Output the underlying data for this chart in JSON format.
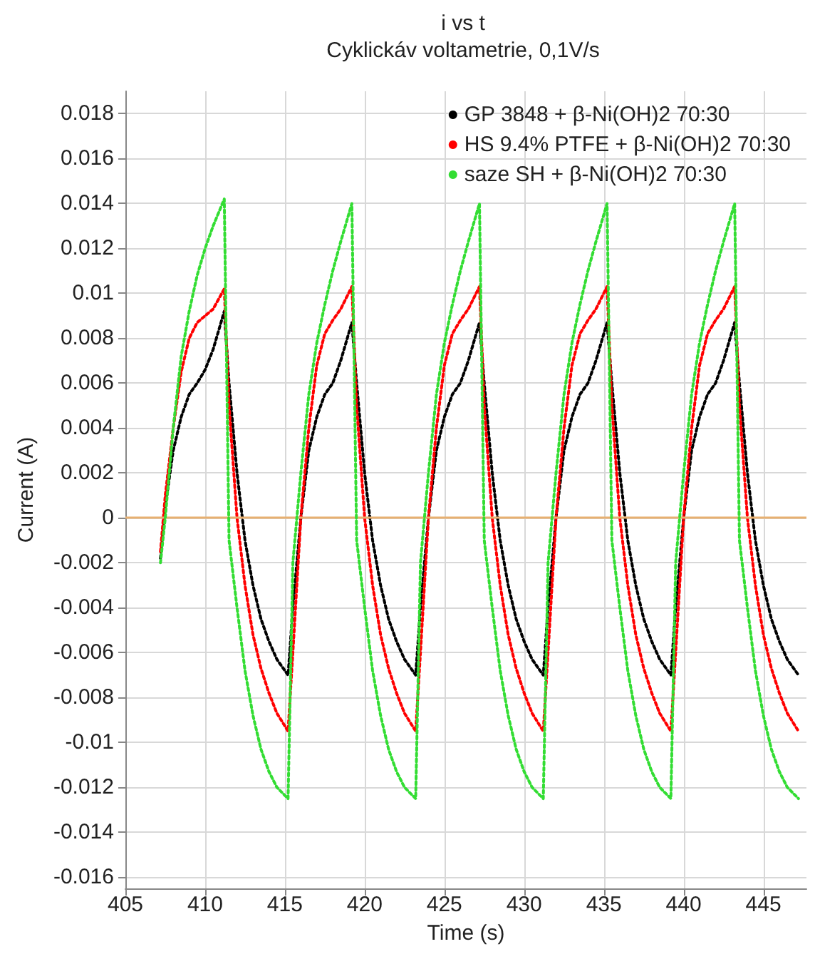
{
  "chart_data": {
    "type": "line",
    "title": "i vs t",
    "subtitle": "Cyklickáv voltametrie, 0,1V/s",
    "xlabel": "Time (s)",
    "ylabel": "Current (A)",
    "x": [
      407.2,
      407.5,
      408.0,
      408.5,
      409.0,
      409.5,
      410.0,
      410.5,
      411.2,
      411.5,
      412.0,
      412.5,
      413.0,
      413.5,
      414.0,
      414.5,
      415.2,
      415.5,
      416.0,
      416.5,
      417.0,
      417.5,
      418.0,
      418.5,
      419.2,
      419.5,
      420.0,
      420.5,
      421.0,
      421.5,
      422.0,
      422.5,
      423.2,
      423.5,
      424.0,
      424.5,
      425.0,
      425.5,
      426.0,
      426.5,
      427.2,
      427.5,
      428.0,
      428.5,
      429.0,
      429.5,
      430.0,
      430.5,
      431.2,
      431.5,
      432.0,
      432.5,
      433.0,
      433.5,
      434.0,
      434.5,
      435.2,
      435.5,
      436.0,
      436.5,
      437.0,
      437.5,
      438.0,
      438.5,
      439.2,
      439.5,
      440.0,
      440.5,
      441.0,
      441.5,
      442.0,
      442.5,
      443.2,
      443.5,
      444.0,
      444.5,
      445.0,
      445.5,
      446.0,
      446.5,
      447.2
    ],
    "series": [
      {
        "name": "GP 3848 + β-Ni(OH)2 70:30",
        "color": "#000000",
        "values": [
          -0.0018,
          0.0005,
          0.003,
          0.0045,
          0.0055,
          0.006,
          0.0066,
          0.0075,
          0.0092,
          0.006,
          0.002,
          -0.001,
          -0.003,
          -0.0045,
          -0.0055,
          -0.0063,
          -0.007,
          -0.004,
          0.0,
          0.003,
          0.0045,
          0.0055,
          0.006,
          0.007,
          0.0087,
          0.006,
          0.002,
          -0.001,
          -0.003,
          -0.0045,
          -0.0055,
          -0.0063,
          -0.007,
          -0.004,
          0.0,
          0.003,
          0.0045,
          0.0055,
          0.006,
          0.007,
          0.0087,
          0.006,
          0.002,
          -0.001,
          -0.003,
          -0.0045,
          -0.0055,
          -0.0063,
          -0.007,
          -0.004,
          0.0,
          0.003,
          0.0045,
          0.0055,
          0.006,
          0.007,
          0.0087,
          0.006,
          0.002,
          -0.001,
          -0.003,
          -0.0045,
          -0.0055,
          -0.0063,
          -0.007,
          -0.004,
          0.0,
          0.003,
          0.0045,
          0.0055,
          0.006,
          0.007,
          0.0087,
          0.006,
          0.002,
          -0.001,
          -0.003,
          -0.0045,
          -0.0055,
          -0.0063,
          -0.007
        ]
      },
      {
        "name": "HS 9.4% PTFE + β-Ni(OH)2 70:30",
        "color": "#ff0000",
        "values": [
          -0.0015,
          0.001,
          0.004,
          0.0065,
          0.008,
          0.0087,
          0.009,
          0.0093,
          0.0102,
          0.005,
          0.0,
          -0.003,
          -0.0052,
          -0.0067,
          -0.0078,
          -0.0087,
          -0.0095,
          -0.006,
          0.0,
          0.004,
          0.0068,
          0.0082,
          0.0088,
          0.0093,
          0.0103,
          0.005,
          0.0,
          -0.003,
          -0.0052,
          -0.0067,
          -0.0078,
          -0.0087,
          -0.0095,
          -0.006,
          0.0,
          0.004,
          0.0068,
          0.0082,
          0.0088,
          0.0093,
          0.0103,
          0.005,
          0.0,
          -0.003,
          -0.0052,
          -0.0067,
          -0.0078,
          -0.0087,
          -0.0095,
          -0.006,
          0.0,
          0.004,
          0.0068,
          0.0082,
          0.0088,
          0.0093,
          0.0103,
          0.005,
          0.0,
          -0.003,
          -0.0052,
          -0.0067,
          -0.0078,
          -0.0087,
          -0.0095,
          -0.006,
          0.0,
          0.004,
          0.0068,
          0.0082,
          0.0088,
          0.0093,
          0.0103,
          0.005,
          0.0,
          -0.003,
          -0.0052,
          -0.0067,
          -0.0078,
          -0.0087,
          -0.0095
        ]
      },
      {
        "name": "saze SH + β-Ni(OH)2 70:30",
        "color": "#33dd33",
        "values": [
          -0.002,
          0.0,
          0.004,
          0.0072,
          0.0092,
          0.0108,
          0.012,
          0.013,
          0.0142,
          -0.001,
          -0.004,
          -0.0068,
          -0.0088,
          -0.0103,
          -0.0113,
          -0.012,
          -0.0125,
          -0.002,
          0.002,
          0.0055,
          0.0078,
          0.0095,
          0.011,
          0.0123,
          0.014,
          -0.001,
          -0.004,
          -0.0068,
          -0.0088,
          -0.0103,
          -0.0113,
          -0.012,
          -0.0125,
          -0.002,
          0.002,
          0.0055,
          0.0078,
          0.0095,
          0.011,
          0.0123,
          0.014,
          -0.001,
          -0.004,
          -0.0068,
          -0.0088,
          -0.0103,
          -0.0113,
          -0.012,
          -0.0125,
          -0.002,
          0.002,
          0.0055,
          0.0078,
          0.0095,
          0.011,
          0.0123,
          0.014,
          -0.001,
          -0.004,
          -0.0068,
          -0.0088,
          -0.0103,
          -0.0113,
          -0.012,
          -0.0125,
          -0.002,
          0.002,
          0.0055,
          0.0078,
          0.0095,
          0.011,
          0.0123,
          0.014,
          -0.001,
          -0.004,
          -0.0068,
          -0.0088,
          -0.0103,
          -0.0113,
          -0.012,
          -0.0125
        ]
      }
    ],
    "xlim": [
      405,
      447.7
    ],
    "xticks": [
      405,
      410,
      415,
      420,
      425,
      430,
      435,
      440,
      445
    ],
    "ylim": [
      -0.0165,
      0.019
    ],
    "yticks": [
      -0.016,
      -0.014,
      -0.012,
      -0.01,
      -0.008,
      -0.006,
      -0.004,
      -0.002,
      0,
      0.002,
      0.004,
      0.006,
      0.008,
      0.01,
      0.012,
      0.014,
      0.016,
      0.018
    ],
    "ref_lines": [
      {
        "axis": "y",
        "value": 0,
        "color": "#e8b070"
      }
    ],
    "grid": true,
    "legend": "top right",
    "marker": "none",
    "line_style": "dotted"
  }
}
